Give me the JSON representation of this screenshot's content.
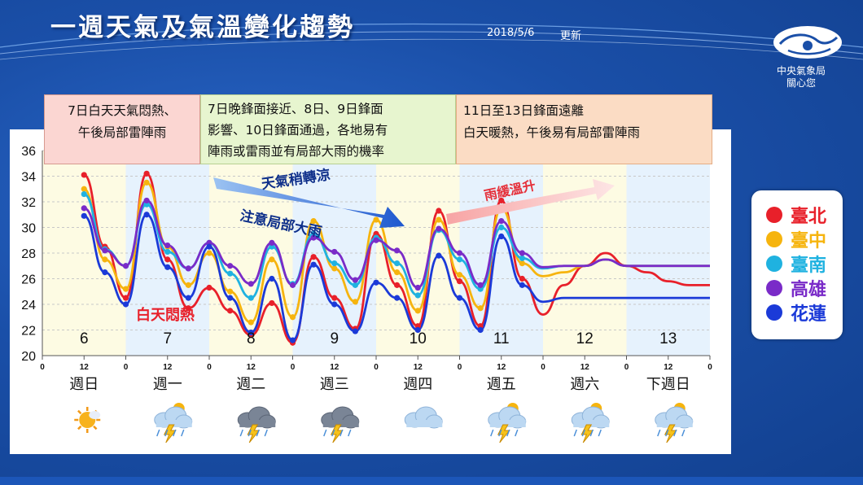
{
  "header": {
    "title": "一週天氣及氣溫變化趨勢",
    "date": "2018/5/6",
    "update_label": "更新"
  },
  "agency": {
    "line1": "中央氣象局",
    "line2": "關心您"
  },
  "notes": [
    {
      "lines": [
        "7日白天天氣悶熱、",
        "午後局部雷陣雨"
      ]
    },
    {
      "lines": [
        "7日晚鋒面接近、8日、9日鋒面",
        "影響、10日鋒面通過，各地易有",
        "陣雨或雷雨並有局部大雨的機率"
      ]
    },
    {
      "lines": [
        "11日至13日鋒面遠離",
        "白天暖熱，午後易有局部雷陣雨"
      ]
    }
  ],
  "annotations": {
    "arrow_cool_1": "天氣稍轉涼",
    "arrow_cool_2": "注意局部大雨",
    "arrow_warm": "雨緩溫升",
    "hot_day": "白天悶熱"
  },
  "weekdays": [
    "週日",
    "週一",
    "週二",
    "週三",
    "週四",
    "週五",
    "週六",
    "下週日"
  ],
  "weather_icons": [
    "sunny-icon",
    "thunderstorm-icon",
    "thunderstorm-icon",
    "thunderstorm-icon",
    "cloudy-icon",
    "thunderstorm-icon",
    "thunderstorm-icon",
    "thunderstorm-icon"
  ],
  "legend": [
    {
      "name": "臺北",
      "color": "#e8202a"
    },
    {
      "name": "臺中",
      "color": "#f6b40e"
    },
    {
      "name": "臺南",
      "color": "#1fb2e0"
    },
    {
      "name": "高雄",
      "color": "#7a2bc8"
    },
    {
      "name": "花蓮",
      "color": "#1b3ad8"
    }
  ],
  "chart_data": {
    "type": "line",
    "title": "一週天氣及氣溫變化趨勢",
    "xlabel": "",
    "ylabel": "",
    "ylim": [
      20,
      36
    ],
    "y_ticks": [
      20,
      22,
      24,
      26,
      28,
      30,
      32,
      34,
      36
    ],
    "x_unit": "hour",
    "xlim": [
      0,
      192
    ],
    "x_tick_labels": [
      "0",
      "12",
      "0",
      "12",
      "0",
      "12",
      "0",
      "12",
      "0",
      "12",
      "0",
      "12",
      "0",
      "12",
      "0",
      "12",
      "0"
    ],
    "day_numbers": [
      "6",
      "7",
      "8",
      "9",
      "10",
      "11",
      "12",
      "13"
    ],
    "x": [
      12,
      18,
      24,
      30,
      36,
      42,
      48,
      54,
      60,
      66,
      72,
      78,
      84,
      90,
      96,
      102,
      108,
      114,
      120,
      126,
      132,
      138,
      144,
      150,
      156,
      162,
      168,
      174,
      180,
      186,
      192
    ],
    "series": [
      {
        "name": "臺北",
        "color": "#e8202a",
        "values": [
          34.1,
          28.5,
          24.5,
          34.2,
          27.5,
          23.7,
          25.3,
          23.5,
          21.6,
          24.1,
          21.0,
          27.7,
          24.5,
          22.1,
          29.5,
          25.5,
          22.3,
          31.3,
          25.8,
          22.3,
          32.1,
          26.0,
          23.2,
          25.5,
          27,
          28,
          27,
          26.5,
          25.8,
          25.5,
          25.5
        ]
      },
      {
        "name": "臺中",
        "color": "#f6b40e",
        "values": [
          33.0,
          27.5,
          25.2,
          33.5,
          28.5,
          25.5,
          28.0,
          25.0,
          22.6,
          27.5,
          23.0,
          30.5,
          26.8,
          24.2,
          30.6,
          26.5,
          23.5,
          30.6,
          26.3,
          23.7,
          31.5,
          27.2,
          26.2,
          26.5,
          27,
          27.5,
          27,
          27,
          27,
          27,
          27
        ]
      },
      {
        "name": "臺南",
        "color": "#1fb2e0",
        "values": [
          32.6,
          28.3,
          27.0,
          31.8,
          28.1,
          26.8,
          28.8,
          26.4,
          24.5,
          28.5,
          25.6,
          29.5,
          27.2,
          25.5,
          29.2,
          27.2,
          24.7,
          29.8,
          27.5,
          25.2,
          30.0,
          27.6,
          26.8,
          27,
          27,
          27.5,
          27,
          27,
          27,
          27,
          27
        ]
      },
      {
        "name": "高雄",
        "color": "#7a2bc8",
        "values": [
          31.5,
          28.2,
          27.0,
          32.1,
          28.6,
          26.8,
          28.8,
          27.0,
          25.6,
          28.8,
          25.5,
          29.2,
          28.1,
          25.9,
          29.0,
          28.2,
          25.3,
          29.9,
          28.0,
          25.5,
          30.5,
          28.0,
          26.9,
          27,
          27,
          27.5,
          27,
          27,
          27,
          27,
          27
        ]
      },
      {
        "name": "花蓮",
        "color": "#1b3ad8",
        "values": [
          30.9,
          26.5,
          24.0,
          31.0,
          26.9,
          24.5,
          28.5,
          24.5,
          21.8,
          26.0,
          21.2,
          27.1,
          24.0,
          21.9,
          25.7,
          24.5,
          22.0,
          27.8,
          24.5,
          22.0,
          29.3,
          25.5,
          24.2,
          24.5,
          24.5,
          24.5,
          24.5,
          24.5,
          24.5,
          24.5,
          24.5
        ]
      }
    ]
  }
}
